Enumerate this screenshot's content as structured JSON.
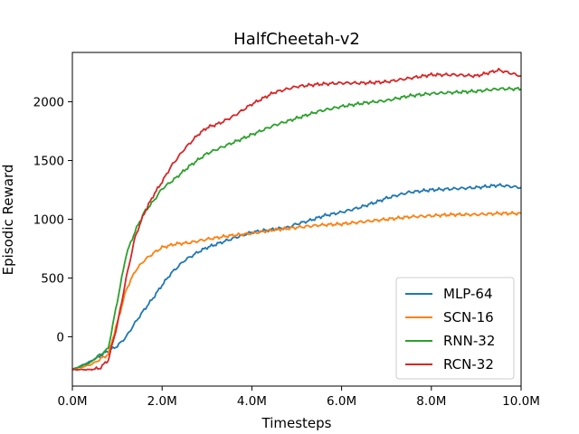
{
  "chart_data": {
    "type": "line",
    "title": "HalfCheetah-v2",
    "xlabel": "Timesteps",
    "ylabel": "Episodic Reward",
    "xlim": [
      0,
      10
    ],
    "ylim": [
      -420,
      2420
    ],
    "x_ticks": [
      0,
      2,
      4,
      6,
      8,
      10
    ],
    "x_tick_labels": [
      "0.0M",
      "2.0M",
      "4.0M",
      "6.0M",
      "8.0M",
      "10.0M"
    ],
    "y_ticks": [
      0,
      500,
      1000,
      1500,
      2000
    ],
    "y_tick_labels": [
      "0",
      "500",
      "1000",
      "1500",
      "2000"
    ],
    "grid": false,
    "legend_position": "lower-right",
    "series": [
      {
        "name": "MLP-64",
        "color": "#1f77b4",
        "x": [
          0,
          0.4,
          0.8,
          1.0,
          1.2,
          1.4,
          1.6,
          1.8,
          2.0,
          2.2,
          2.5,
          2.8,
          3.0,
          3.3,
          3.6,
          4.0,
          4.4,
          4.8,
          5.0,
          5.3,
          5.6,
          6.0,
          6.4,
          6.8,
          7.0,
          7.5,
          8.0,
          8.5,
          9.0,
          9.5,
          10.0
        ],
        "y": [
          -280,
          -210,
          -120,
          -80,
          0,
          120,
          230,
          330,
          440,
          540,
          650,
          720,
          760,
          800,
          840,
          890,
          910,
          930,
          960,
          990,
          1030,
          1060,
          1100,
          1150,
          1180,
          1230,
          1250,
          1260,
          1270,
          1290,
          1270
        ]
      },
      {
        "name": "SCN-16",
        "color": "#ff7f0e",
        "x": [
          0,
          0.4,
          0.8,
          1.0,
          1.2,
          1.4,
          1.6,
          1.8,
          2.0,
          2.3,
          2.6,
          3.0,
          3.5,
          4.0,
          4.5,
          5.0,
          5.5,
          6.0,
          6.5,
          7.0,
          7.5,
          8.0,
          8.5,
          9.0,
          9.5,
          10.0
        ],
        "y": [
          -280,
          -240,
          -150,
          120,
          400,
          560,
          650,
          710,
          760,
          790,
          800,
          830,
          860,
          880,
          910,
          930,
          950,
          960,
          980,
          1000,
          1020,
          1030,
          1040,
          1040,
          1050,
          1050
        ]
      },
      {
        "name": "RNN-32",
        "color": "#2ca02c",
        "x": [
          0,
          0.4,
          0.8,
          1.0,
          1.2,
          1.4,
          1.6,
          1.8,
          2.0,
          2.3,
          2.6,
          3.0,
          3.5,
          4.0,
          4.5,
          5.0,
          5.5,
          6.0,
          6.5,
          7.0,
          7.5,
          8.0,
          8.5,
          9.0,
          9.5,
          10.0
        ],
        "y": [
          -280,
          -220,
          -100,
          300,
          700,
          900,
          1060,
          1150,
          1260,
          1350,
          1450,
          1560,
          1640,
          1720,
          1800,
          1860,
          1920,
          1960,
          1990,
          2010,
          2050,
          2070,
          2080,
          2090,
          2110,
          2110
        ]
      },
      {
        "name": "RCN-32",
        "color": "#d62728",
        "x": [
          0,
          0.4,
          0.6,
          0.8,
          1.0,
          1.2,
          1.4,
          1.6,
          1.8,
          2.0,
          2.2,
          2.5,
          2.8,
          3.0,
          3.3,
          3.6,
          4.0,
          4.5,
          5.0,
          5.5,
          6.0,
          6.5,
          7.0,
          7.5,
          8.0,
          8.5,
          9.0,
          9.5,
          10.0
        ],
        "y": [
          -280,
          -280,
          -270,
          -200,
          100,
          500,
          850,
          1050,
          1200,
          1320,
          1450,
          1600,
          1720,
          1780,
          1820,
          1880,
          1980,
          2080,
          2130,
          2150,
          2160,
          2160,
          2170,
          2200,
          2230,
          2230,
          2220,
          2270,
          2220
        ]
      }
    ]
  }
}
